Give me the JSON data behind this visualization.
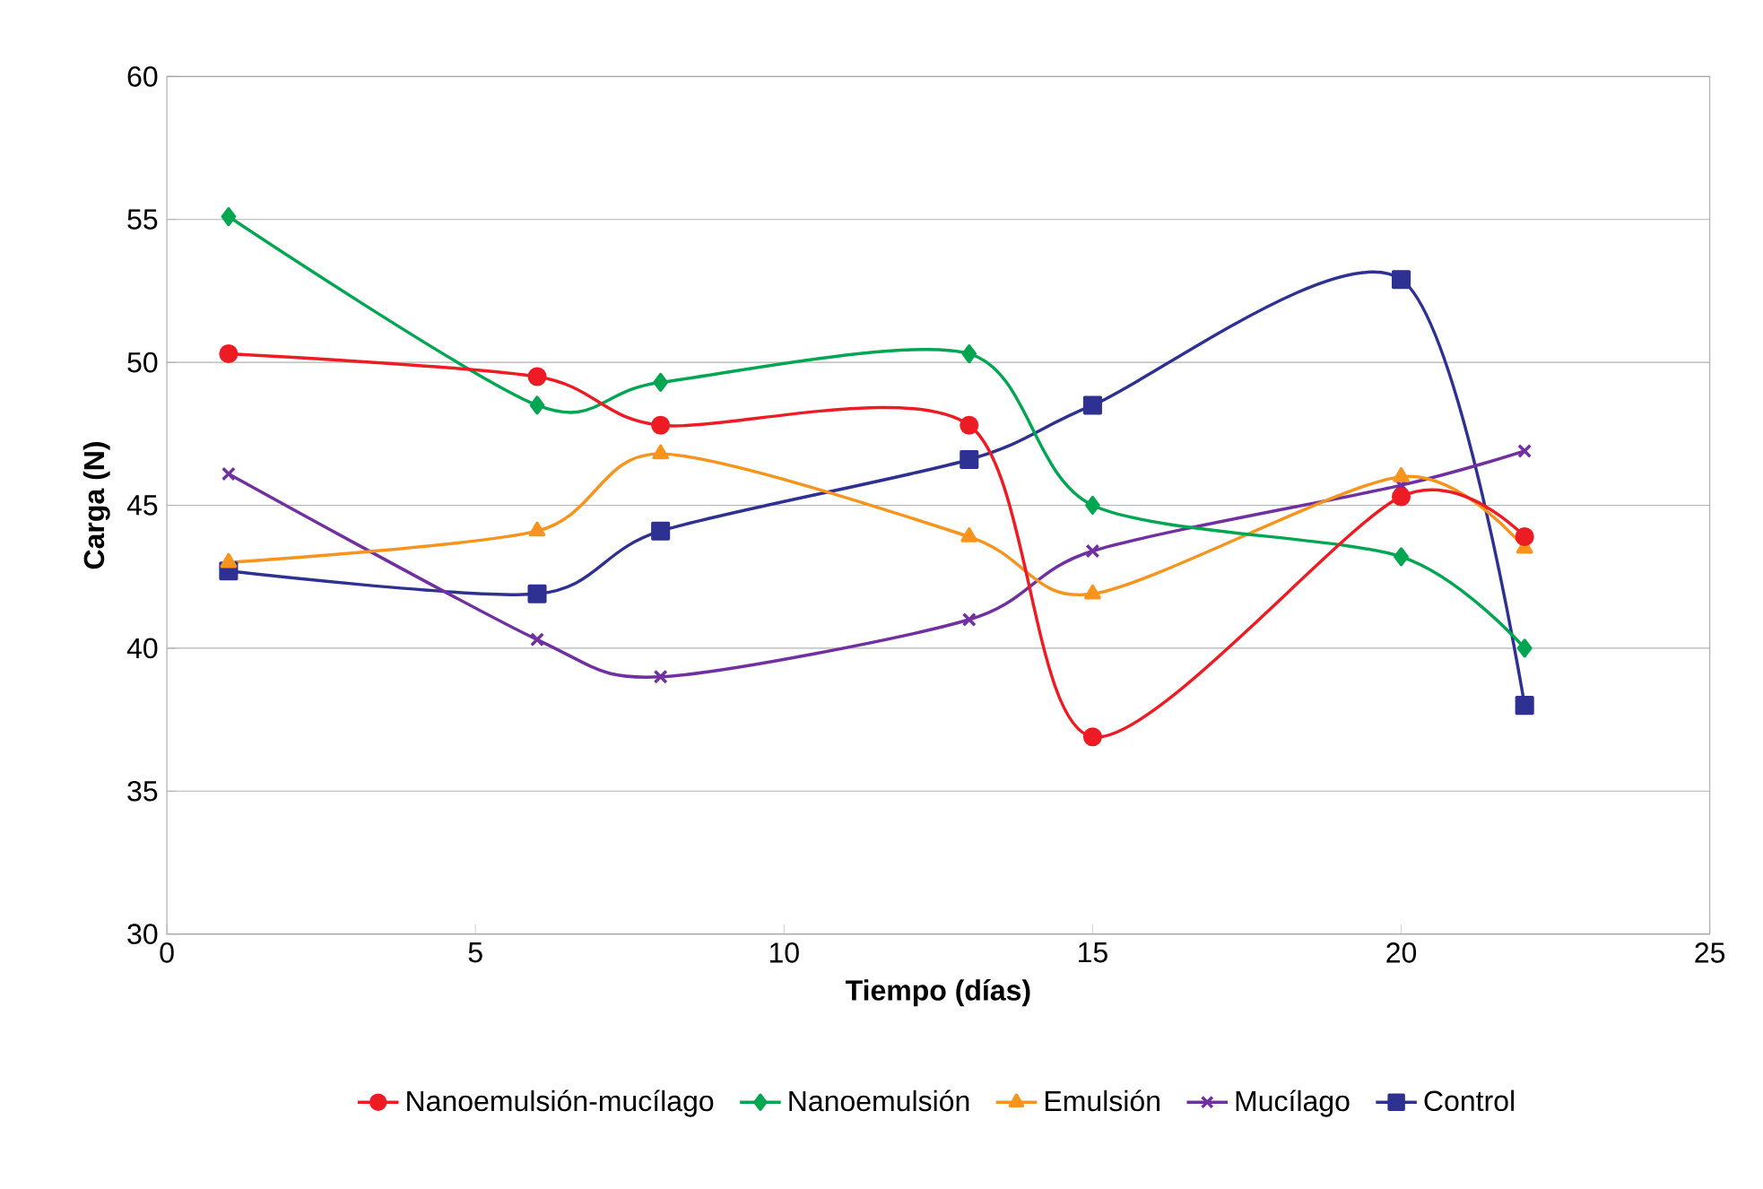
{
  "chart_data": {
    "type": "line",
    "xlabel": "Tiempo (días)",
    "ylabel": "Carga (N)",
    "xlim": [
      0,
      25
    ],
    "xticks": [
      0,
      5,
      10,
      15,
      20,
      25
    ],
    "ylim": [
      30,
      60
    ],
    "yticks": [
      30,
      35,
      40,
      45,
      50,
      55,
      60
    ],
    "grid": "y",
    "legend": "bottom",
    "line_style": "solid",
    "series": [
      {
        "name": "Nanoemulsión-mucílago",
        "color": "#ed1c24",
        "marker": "circle",
        "x": [
          1,
          6,
          8,
          13,
          15,
          20,
          22
        ],
        "values": [
          50.3,
          49.5,
          47.8,
          47.8,
          36.9,
          45.3,
          43.9
        ]
      },
      {
        "name": "Nanoemulsión",
        "color": "#00a651",
        "marker": "diamond",
        "x": [
          1,
          6,
          8,
          13,
          15,
          20,
          22
        ],
        "values": [
          55.1,
          48.5,
          49.3,
          50.3,
          45.0,
          43.2,
          40.0
        ]
      },
      {
        "name": "Emulsión",
        "color": "#f7941d",
        "marker": "triangle",
        "x": [
          1,
          6,
          8,
          13,
          15,
          20,
          22
        ],
        "values": [
          43.0,
          44.1,
          46.8,
          43.9,
          41.9,
          46.0,
          43.5
        ]
      },
      {
        "name": "Mucílago",
        "color": "#7030a0",
        "marker": "cross",
        "x": [
          1,
          6,
          8,
          13,
          15,
          20,
          22
        ],
        "values": [
          46.1,
          40.3,
          39.0,
          41.0,
          43.4,
          45.7,
          46.9
        ]
      },
      {
        "name": "Control",
        "color": "#2e3192",
        "marker": "square",
        "x": [
          1,
          6,
          8,
          13,
          15,
          20,
          22
        ],
        "values": [
          42.7,
          41.9,
          44.1,
          46.6,
          48.5,
          52.9,
          38.0
        ]
      }
    ]
  }
}
